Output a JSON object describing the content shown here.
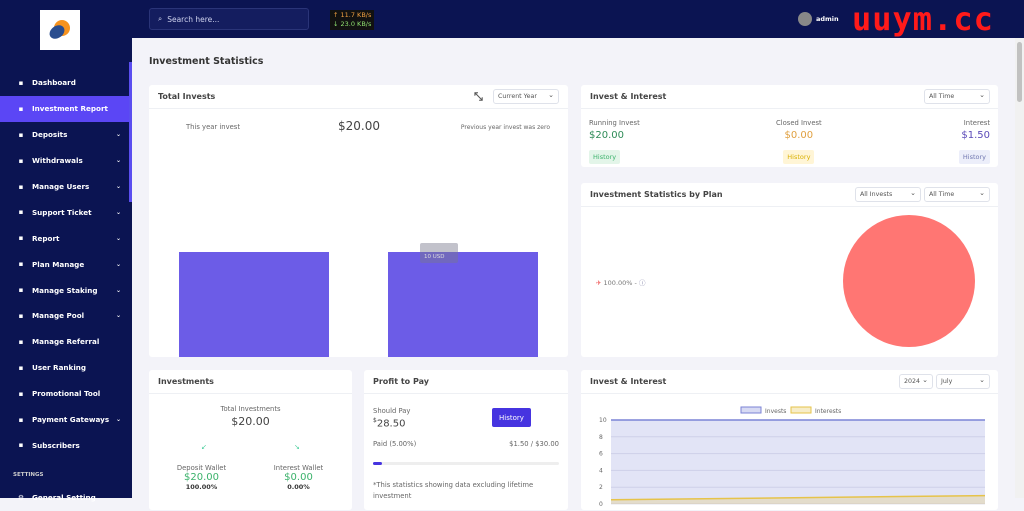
{
  "sidebar": {
    "items": [
      {
        "label": "Dashboard",
        "icon": "home-icon",
        "chev": false
      },
      {
        "label": "Investment Report",
        "icon": "bar-chart-icon",
        "chev": false,
        "active": true
      },
      {
        "label": "Deposits",
        "icon": "file-icon",
        "chev": true
      },
      {
        "label": "Withdrawals",
        "icon": "bank-icon",
        "chev": true
      },
      {
        "label": "Manage Users",
        "icon": "users-icon",
        "chev": true
      },
      {
        "label": "Support Ticket",
        "icon": "ticket-icon",
        "chev": true
      },
      {
        "label": "Report",
        "icon": "list-icon",
        "chev": true
      },
      {
        "label": "Plan Manage",
        "icon": "clipboard-icon",
        "chev": true
      },
      {
        "label": "Manage Staking",
        "icon": "staking-icon",
        "chev": true
      },
      {
        "label": "Manage Pool",
        "icon": "pool-icon",
        "chev": true
      },
      {
        "label": "Manage Referral",
        "icon": "referral-icon",
        "chev": false
      },
      {
        "label": "User Ranking",
        "icon": "medal-icon",
        "chev": false
      },
      {
        "label": "Promotional Tool",
        "icon": "ad-icon",
        "chev": false
      },
      {
        "label": "Payment Gateways",
        "icon": "credit-card-icon",
        "chev": true
      },
      {
        "label": "Subscribers",
        "icon": "thumbs-up-icon",
        "chev": false
      }
    ],
    "settings_heading": "SETTINGS",
    "general_setting": "General Setting"
  },
  "netspeed": {
    "up": "↑ 11.7 KB/s",
    "down": "↓ 23.0 KB/s"
  },
  "topbar": {
    "search_placeholder": "Search here...",
    "username": "admin",
    "watermark": "uuym.cc"
  },
  "page_title": "Investment Statistics",
  "total_invests": {
    "title": "Total Invests",
    "period": "Current Year",
    "this_year_label": "This year invest",
    "amount": "$20.00",
    "prev_note": "Previous year invest was zero",
    "tooltip": "10 USD",
    "bar_color": "#6c5ce7"
  },
  "invest_interest": {
    "title": "Invest & Interest",
    "period": "All Time",
    "running_label": "Running Invest",
    "running": "$20.00",
    "closed_label": "Closed Invest",
    "closed": "$0.00",
    "interest_label": "Interest",
    "interest": "$1.50",
    "history": "History"
  },
  "by_plan": {
    "title": "Investment Statistics by Plan",
    "filter": "All Invests",
    "period": "All Time",
    "legend": "100.00% -",
    "pie_color": "#ff7673"
  },
  "investments": {
    "title": "Investments",
    "total_label": "Total Investments",
    "total": "$20.00",
    "deposit_label": "Deposit Wallet",
    "deposit": "$20.00",
    "deposit_pct": "100.00%",
    "interest_label": "Interest Wallet",
    "interest": "$0.00",
    "interest_pct": "0.00%"
  },
  "profit": {
    "title": "Profit to Pay",
    "should_label": "Should Pay",
    "currency": "$",
    "should": "28.50",
    "history": "History",
    "paid_label": "Paid (5.00%)",
    "paid_ratio": "$1.50 / $30.00",
    "progress_pct": 5,
    "note": "*This statistics showing data excluding lifetime investment"
  },
  "chart_data": [
    {
      "type": "bar",
      "values": [
        10,
        10
      ],
      "ylabel": "",
      "xlabel": ""
    },
    {
      "type": "area",
      "title": "Invest & Interest",
      "year": "2024",
      "month": "July",
      "ylim": [
        0,
        10
      ],
      "yticks": [
        "10",
        "8",
        "6",
        "4",
        "2",
        "0"
      ],
      "series": [
        {
          "name": "Invests",
          "values": [
            10,
            10
          ],
          "color": "#7b83d6"
        },
        {
          "name": "Interests",
          "values": [
            0.5,
            1
          ],
          "color": "#e6c34a"
        }
      ],
      "grid": true,
      "legend": "top"
    }
  ]
}
